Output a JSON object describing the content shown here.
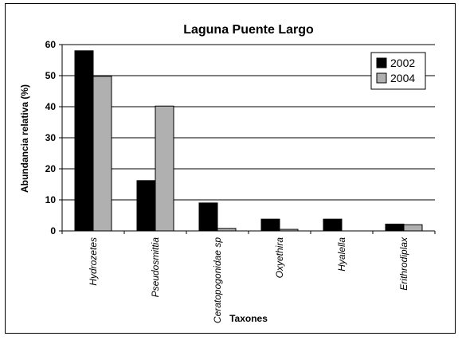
{
  "chart_data": {
    "type": "bar",
    "title": "Laguna Puente Largo",
    "xlabel": "Taxones",
    "ylabel": "Abundancia  relativa (%)",
    "ylim": [
      0,
      60
    ],
    "yticks": [
      0,
      10,
      20,
      30,
      40,
      50,
      60
    ],
    "grid": true,
    "legend_position": "top-right",
    "categories": [
      "Hydrozetes",
      "Pseudosmittia",
      "Ceratopogonidae sp",
      "Oxyethira",
      "Hyalella",
      "Erithrodiplax"
    ],
    "series": [
      {
        "name": "2002",
        "color": "#000000",
        "values": [
          58,
          16.2,
          9,
          3.8,
          3.8,
          2.2
        ]
      },
      {
        "name": "2004",
        "color": "#b0b0b0",
        "values": [
          49.8,
          40.2,
          0.8,
          0.5,
          0,
          2
        ]
      }
    ]
  }
}
